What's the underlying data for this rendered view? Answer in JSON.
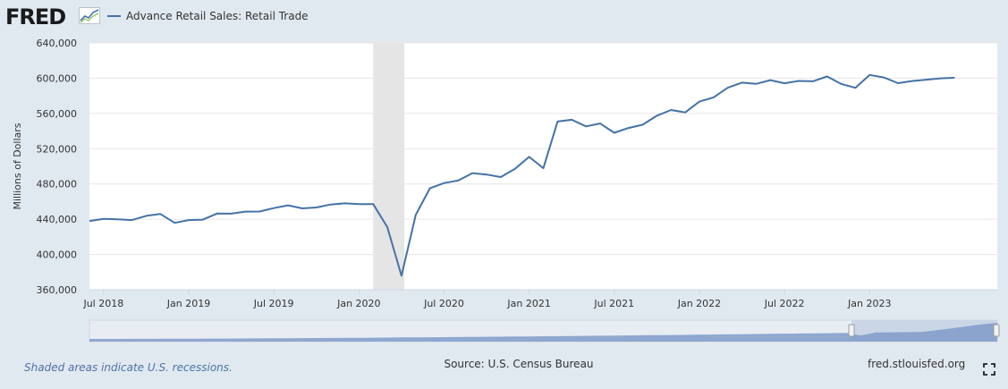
{
  "header": {
    "logo_text": "FRED",
    "legend_label": "Advance Retail Sales: Retail Trade"
  },
  "footer": {
    "recession_note": "Shaded areas indicate U.S. recessions.",
    "source": "Source: U.S. Census Bureau",
    "site": "fred.stlouisfed.org"
  },
  "colors": {
    "series": "#4572a7",
    "recession": "#e5e5e5",
    "background": "#e1e9f0",
    "plot_bg": "#ffffff",
    "grid": "#e6e6e6",
    "navigator_fill": "#7f9bc9",
    "navigator_selected": "#c7d2e4"
  },
  "chart_data": {
    "type": "line",
    "title": "",
    "xlabel": "",
    "ylabel": "Millions of Dollars",
    "ylim": [
      360000,
      640000
    ],
    "xlim": [
      "2018-06",
      "2023-10"
    ],
    "grid": true,
    "legend": "top-left",
    "yticks": [
      360000,
      400000,
      440000,
      480000,
      520000,
      560000,
      600000,
      640000
    ],
    "ytick_labels": [
      "360,000",
      "400,000",
      "440,000",
      "480,000",
      "520,000",
      "560,000",
      "600,000",
      "640,000"
    ],
    "xticks": [
      "2018-07",
      "2019-01",
      "2019-07",
      "2020-01",
      "2020-07",
      "2021-01",
      "2021-07",
      "2022-01",
      "2022-07",
      "2023-01"
    ],
    "xtick_labels": [
      "Jul 2018",
      "Jan 2019",
      "Jul 2019",
      "Jan 2020",
      "Jul 2020",
      "Jan 2021",
      "Jul 2021",
      "Jan 2022",
      "Jul 2022",
      "Jan 2023"
    ],
    "recessions": [
      {
        "start": "2020-02",
        "end": "2020-04"
      }
    ],
    "series": [
      {
        "name": "Advance Retail Sales: Retail Trade",
        "x": [
          "2018-06",
          "2018-07",
          "2018-08",
          "2018-09",
          "2018-10",
          "2018-11",
          "2018-12",
          "2019-01",
          "2019-02",
          "2019-03",
          "2019-04",
          "2019-05",
          "2019-06",
          "2019-07",
          "2019-08",
          "2019-09",
          "2019-10",
          "2019-11",
          "2019-12",
          "2020-01",
          "2020-02",
          "2020-03",
          "2020-04",
          "2020-05",
          "2020-06",
          "2020-07",
          "2020-08",
          "2020-09",
          "2020-10",
          "2020-11",
          "2020-12",
          "2021-01",
          "2021-02",
          "2021-03",
          "2021-04",
          "2021-05",
          "2021-06",
          "2021-07",
          "2021-08",
          "2021-09",
          "2021-10",
          "2021-11",
          "2021-12",
          "2022-01",
          "2022-02",
          "2022-03",
          "2022-04",
          "2022-05",
          "2022-06",
          "2022-07",
          "2022-08",
          "2022-09",
          "2022-10",
          "2022-11",
          "2022-12",
          "2023-01",
          "2023-02",
          "2023-03",
          "2023-04",
          "2023-05",
          "2023-06",
          "2023-07"
        ],
        "y": [
          438000,
          440500,
          439800,
          439000,
          443800,
          445900,
          435900,
          439000,
          439500,
          446400,
          446300,
          448700,
          448800,
          452600,
          455800,
          452300,
          453300,
          456700,
          458000,
          457100,
          457200,
          431100,
          375800,
          444800,
          475000,
          481000,
          483900,
          492300,
          490700,
          487800,
          497200,
          510800,
          497900,
          550800,
          552900,
          545300,
          548600,
          538000,
          543500,
          547200,
          557400,
          563900,
          561200,
          573400,
          578200,
          589200,
          595000,
          593500,
          597800,
          594200,
          596900,
          596500,
          602000,
          593400,
          589100,
          603700,
          600800,
          594300,
          596800,
          598300,
          599800,
          600500
        ]
      }
    ]
  }
}
